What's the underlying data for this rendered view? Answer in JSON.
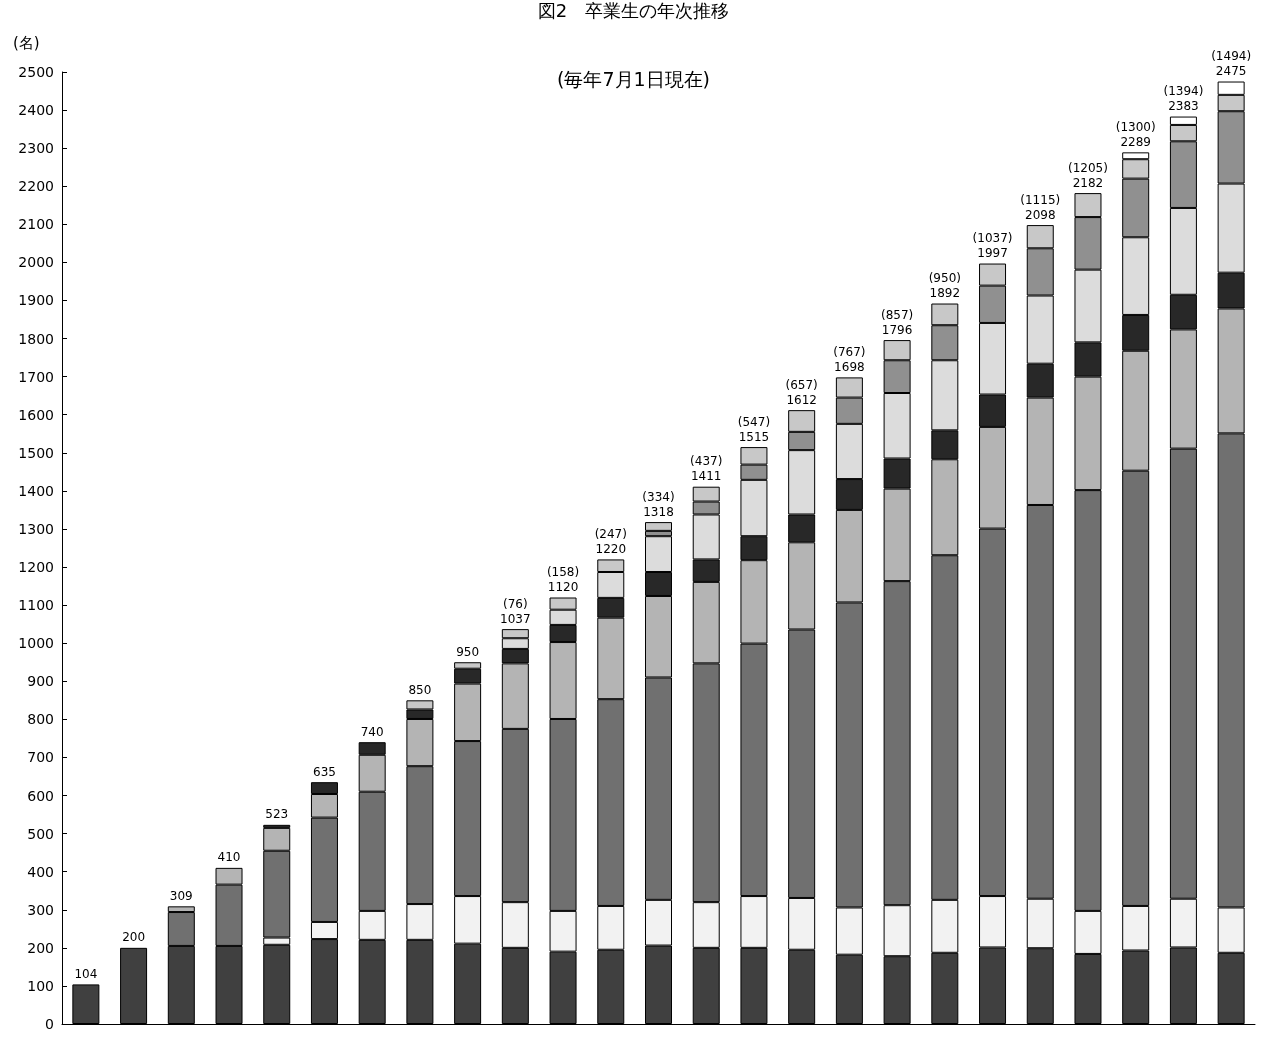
{
  "chart_data": {
    "type": "bar",
    "stacked": true,
    "title": "図2　卒業生の年次推移",
    "subtitle": "(毎年7月1日現在)",
    "ylabel": "(名)",
    "categories": [
      null,
      null,
      null,
      null,
      null,
      null,
      null,
      null,
      null,
      null,
      null,
      null,
      null,
      null,
      null,
      null,
      null,
      null,
      null,
      null,
      null,
      null,
      null,
      null,
      null
    ],
    "series": [
      {
        "color": "#404040",
        "values": [
          104,
          200,
          205,
          205,
          208,
          223,
          221,
          221,
          211,
          200,
          190,
          195,
          206,
          200,
          200,
          195,
          182,
          178,
          187,
          201,
          199,
          184,
          193,
          201,
          187
        ]
      },
      {
        "color": "#f2f2f2",
        "values": [
          null,
          null,
          null,
          null,
          19,
          45,
          76,
          94,
          125,
          120,
          107,
          115,
          120,
          120,
          136,
          136,
          124,
          134,
          139,
          135,
          130,
          113,
          117,
          128,
          119
        ]
      },
      {
        "color": "#707070",
        "values": [
          null,
          null,
          89,
          161,
          228,
          274,
          313,
          362,
          407,
          455,
          504,
          543,
          584,
          627,
          663,
          705,
          801,
          851,
          905,
          965,
          1034,
          1105,
          1143,
          1182,
          1245
        ]
      },
      {
        "color": "#b4b4b4",
        "values": [
          null,
          null,
          15,
          44,
          60,
          62,
          97,
          124,
          151,
          172,
          202,
          214,
          214,
          214,
          219,
          229,
          243,
          243,
          252,
          267,
          282,
          298,
          315,
          313,
          328
        ]
      },
      {
        "color": "#282828",
        "values": [
          null,
          null,
          null,
          null,
          8,
          31,
          33,
          25,
          39,
          38,
          45,
          52,
          63,
          59,
          63,
          73,
          81,
          79,
          76,
          85,
          89,
          90,
          94,
          91,
          94
        ]
      },
      {
        "color": "#dcdcdc",
        "values": [
          null,
          null,
          null,
          null,
          null,
          null,
          null,
          null,
          null,
          28,
          40,
          68,
          94,
          118,
          148,
          169,
          145,
          172,
          184,
          188,
          179,
          191,
          204,
          228,
          234
        ]
      },
      {
        "color": "#909090",
        "values": [
          null,
          null,
          null,
          null,
          null,
          null,
          null,
          null,
          null,
          null,
          null,
          null,
          14,
          34,
          40,
          48,
          69,
          86,
          92,
          98,
          124,
          138,
          154,
          175,
          190
        ]
      },
      {
        "color": "#c8c8c8",
        "values": [
          null,
          null,
          null,
          null,
          null,
          null,
          null,
          24,
          17,
          24,
          32,
          33,
          23,
          39,
          46,
          57,
          53,
          53,
          57,
          58,
          61,
          63,
          51,
          43,
          43
        ]
      },
      {
        "color": "#ffffff",
        "values": [
          null,
          null,
          null,
          null,
          null,
          null,
          null,
          null,
          null,
          null,
          null,
          null,
          null,
          null,
          null,
          null,
          null,
          null,
          null,
          null,
          null,
          null,
          18,
          22,
          35
        ]
      }
    ],
    "totals": [
      "104",
      "200",
      "309",
      "410",
      "523",
      "635",
      "740",
      "850",
      "950",
      "(76)\n1037",
      "(158)\n1120",
      "(247)\n1220",
      "(334)\n1318",
      "(437)\n1411",
      "(547)\n1515",
      "(657)\n1612",
      "(767)\n1698",
      "(857)\n1796",
      "(950)\n1892",
      "(1037)\n1997",
      "(1115)\n2098",
      "(1205)\n2182",
      "(1300)\n2289",
      "(1394)\n2383",
      "(1494)\n2475"
    ],
    "ylim": [
      0,
      2500
    ],
    "yticks": [
      0,
      100,
      200,
      300,
      400,
      500,
      600,
      700,
      800,
      900,
      1000,
      1100,
      1200,
      1300,
      1400,
      1500,
      1600,
      1700,
      1800,
      1900,
      2000,
      2100,
      2200,
      2300,
      2400,
      2500
    ],
    "grid": false
  }
}
